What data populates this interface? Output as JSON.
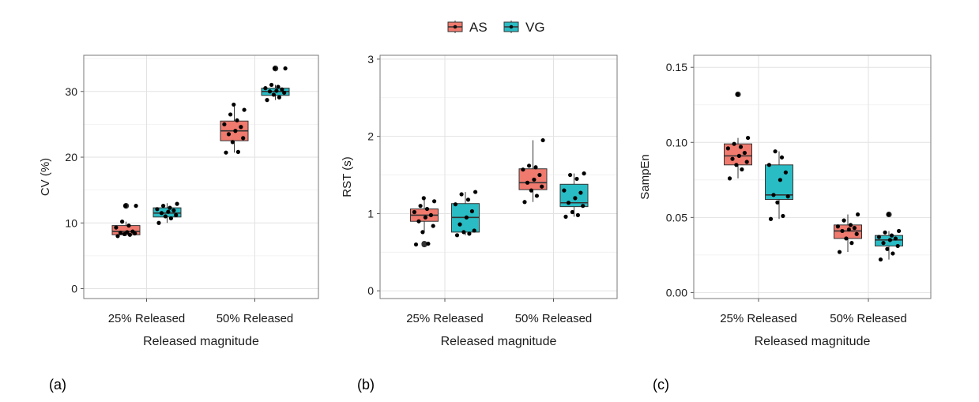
{
  "legend": [
    {
      "label": "AS",
      "color": "#F07A6E"
    },
    {
      "label": "VG",
      "color": "#2ABCC4"
    }
  ],
  "chart_data": [
    {
      "type": "box",
      "panel_label": "(a)",
      "xlabel": "Released magnitude",
      "ylabel": "CV (%)",
      "categories": [
        "25% Released",
        "50% Released"
      ],
      "ylim": [
        -1.5,
        35.5
      ],
      "yticks": [
        0,
        10,
        20,
        30
      ],
      "ytick_labels": [
        "0",
        "10",
        "20",
        "30"
      ],
      "grid": true,
      "series": [
        {
          "name": "AS",
          "color": "#F07A6E",
          "boxes": [
            {
              "category": "25% Released",
              "whisker_low": 8.0,
              "q1": 8.2,
              "median": 8.7,
              "q3": 9.6,
              "whisker_high": 10.2,
              "outliers": [
                12.6,
                12.6
              ],
              "points": [
                8.0,
                8.2,
                8.3,
                8.4,
                8.5,
                8.6,
                8.7,
                9.3,
                9.6,
                10.2,
                12.6,
                12.6
              ]
            },
            {
              "category": "50% Released",
              "whisker_low": 20.7,
              "q1": 22.5,
              "median": 24.0,
              "q3": 25.5,
              "whisker_high": 28.0,
              "outliers": [],
              "points": [
                20.7,
                20.8,
                22.3,
                22.9,
                23.5,
                24.0,
                24.6,
                25.0,
                25.6,
                26.5,
                27.2,
                28.0
              ]
            }
          ]
        },
        {
          "name": "VG",
          "color": "#2ABCC4",
          "boxes": [
            {
              "category": "25% Released",
              "whisker_low": 10.0,
              "q1": 10.9,
              "median": 11.5,
              "q3": 12.3,
              "whisker_high": 13.0,
              "outliers": [],
              "points": [
                10.0,
                10.7,
                11.0,
                11.2,
                11.5,
                11.7,
                11.9,
                12.1,
                12.3,
                12.6,
                12.9
              ]
            },
            {
              "category": "50% Released",
              "whisker_low": 28.7,
              "q1": 29.4,
              "median": 30.0,
              "q3": 30.5,
              "whisker_high": 31.0,
              "outliers": [
                33.5,
                33.5
              ],
              "points": [
                28.7,
                29.1,
                29.5,
                29.8,
                30.0,
                30.1,
                30.3,
                30.5,
                30.7,
                31.0,
                33.5,
                33.5
              ]
            }
          ]
        }
      ]
    },
    {
      "type": "box",
      "panel_label": "(b)",
      "xlabel": "Released magnitude",
      "ylabel": "RST (s)",
      "categories": [
        "25% Released",
        "50% Released"
      ],
      "ylim": [
        -0.1,
        3.05
      ],
      "yticks": [
        0,
        1,
        2,
        3
      ],
      "ytick_labels": [
        "0",
        "1",
        "2",
        "3"
      ],
      "grid": true,
      "series": [
        {
          "name": "AS",
          "color": "#F07A6E",
          "boxes": [
            {
              "category": "25% Released",
              "whisker_low": 0.76,
              "q1": 0.9,
              "median": 0.98,
              "q3": 1.06,
              "whisker_high": 1.2,
              "outliers": [
                0.6,
                0.61
              ],
              "points": [
                0.6,
                0.61,
                0.76,
                0.84,
                0.9,
                0.95,
                0.98,
                1.02,
                1.06,
                1.1,
                1.16,
                1.2
              ]
            },
            {
              "category": "50% Released",
              "whisker_low": 1.15,
              "q1": 1.31,
              "median": 1.4,
              "q3": 1.58,
              "whisker_high": 1.95,
              "outliers": [],
              "points": [
                1.15,
                1.23,
                1.3,
                1.35,
                1.4,
                1.44,
                1.5,
                1.57,
                1.6,
                1.62,
                1.95
              ]
            }
          ]
        },
        {
          "name": "VG",
          "color": "#2ABCC4",
          "boxes": [
            {
              "category": "25% Released",
              "whisker_low": 0.72,
              "q1": 0.76,
              "median": 0.95,
              "q3": 1.13,
              "whisker_high": 1.28,
              "outliers": [],
              "points": [
                0.72,
                0.74,
                0.76,
                0.78,
                0.86,
                0.95,
                1.03,
                1.12,
                1.18,
                1.25,
                1.28
              ]
            },
            {
              "category": "50% Released",
              "whisker_low": 0.96,
              "q1": 1.09,
              "median": 1.14,
              "q3": 1.38,
              "whisker_high": 1.52,
              "outliers": [],
              "points": [
                0.96,
                0.98,
                1.02,
                1.1,
                1.14,
                1.2,
                1.27,
                1.3,
                1.45,
                1.5,
                1.52
              ]
            }
          ]
        }
      ]
    },
    {
      "type": "box",
      "panel_label": "(c)",
      "xlabel": "Released magnitude",
      "ylabel": "SampEn",
      "categories": [
        "25% Released",
        "50% Released"
      ],
      "ylim": [
        -0.004,
        0.158
      ],
      "yticks": [
        0.0,
        0.05,
        0.1,
        0.15
      ],
      "ytick_labels": [
        "0.00",
        "0.05",
        "0.10",
        "0.15"
      ],
      "grid": true,
      "series": [
        {
          "name": "AS",
          "color": "#F07A6E",
          "boxes": [
            {
              "category": "25% Released",
              "whisker_low": 0.076,
              "q1": 0.085,
              "median": 0.091,
              "q3": 0.099,
              "whisker_high": 0.103,
              "outliers": [
                0.132
              ],
              "points": [
                0.076,
                0.082,
                0.085,
                0.087,
                0.089,
                0.091,
                0.093,
                0.096,
                0.097,
                0.099,
                0.103,
                0.132
              ]
            },
            {
              "category": "50% Released",
              "whisker_low": 0.027,
              "q1": 0.036,
              "median": 0.041,
              "q3": 0.045,
              "whisker_high": 0.052,
              "outliers": [],
              "points": [
                0.027,
                0.033,
                0.036,
                0.039,
                0.041,
                0.042,
                0.043,
                0.044,
                0.045,
                0.048,
                0.052
              ]
            }
          ]
        },
        {
          "name": "VG",
          "color": "#2ABCC4",
          "boxes": [
            {
              "category": "25% Released",
              "whisker_low": 0.049,
              "q1": 0.062,
              "median": 0.065,
              "q3": 0.085,
              "whisker_high": 0.094,
              "outliers": [],
              "points": [
                0.049,
                0.051,
                0.06,
                0.064,
                0.065,
                0.075,
                0.08,
                0.085,
                0.09,
                0.094
              ]
            },
            {
              "category": "50% Released",
              "whisker_low": 0.022,
              "q1": 0.031,
              "median": 0.035,
              "q3": 0.038,
              "whisker_high": 0.041,
              "outliers": [
                0.052
              ],
              "points": [
                0.022,
                0.026,
                0.029,
                0.031,
                0.033,
                0.035,
                0.036,
                0.037,
                0.038,
                0.04,
                0.041,
                0.052
              ]
            }
          ]
        }
      ]
    }
  ]
}
